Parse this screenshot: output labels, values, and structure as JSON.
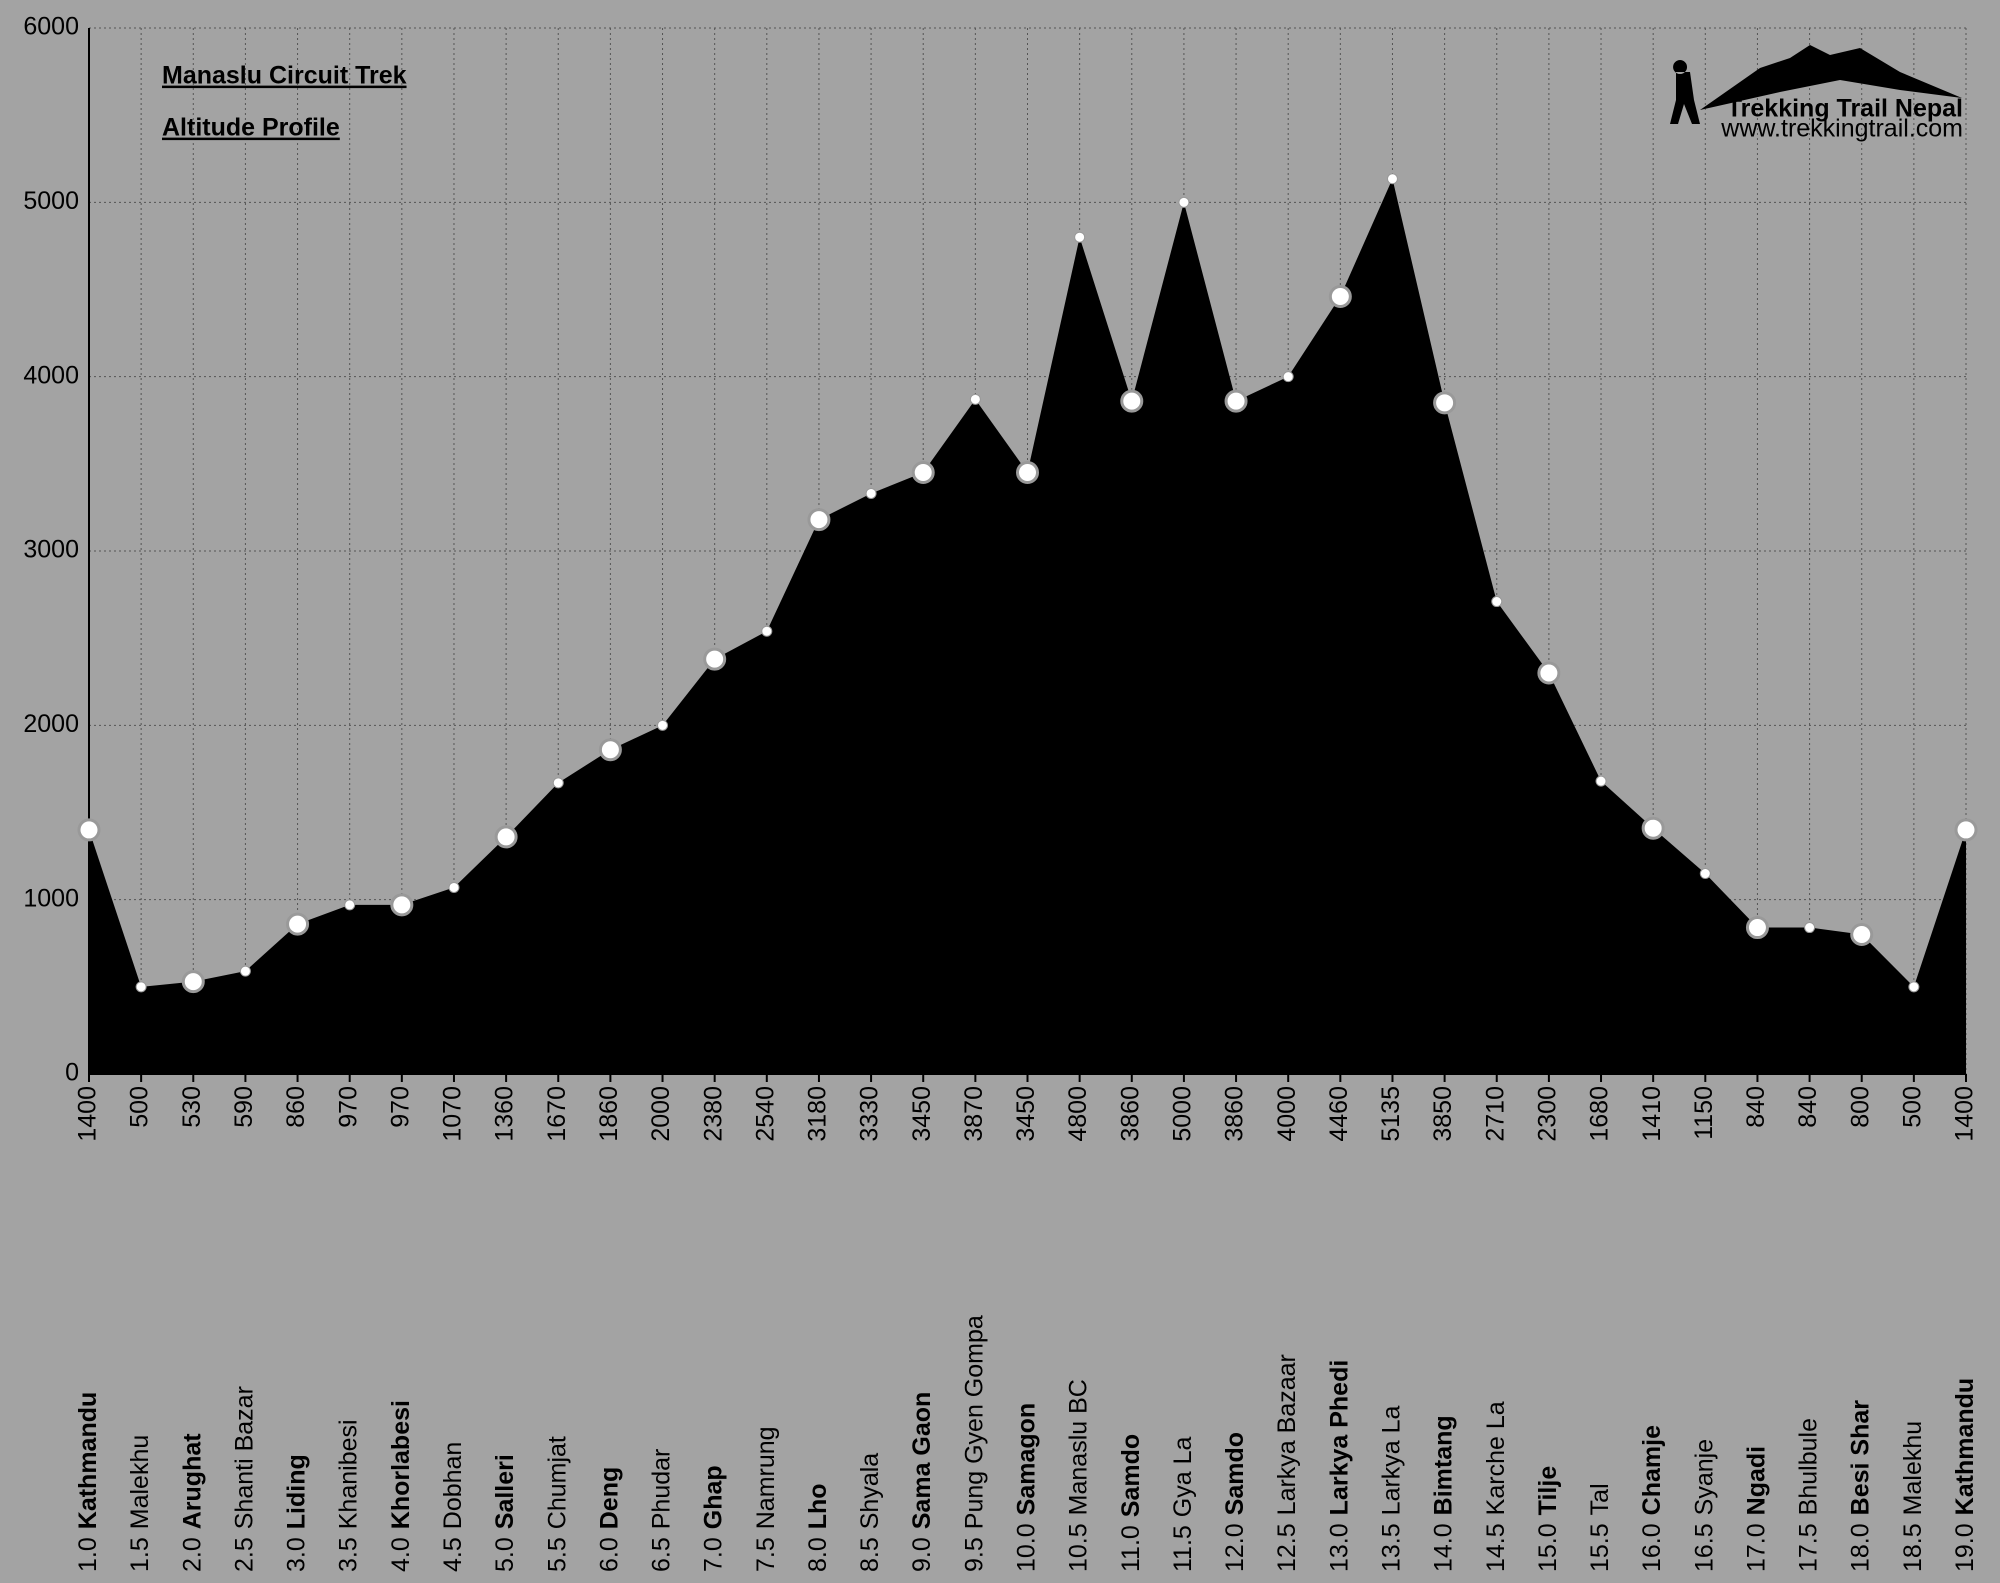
{
  "chart_data": {
    "type": "area",
    "title": "Manaslu Circuit Trek",
    "subtitle": "Altitude Profile",
    "logo": {
      "name": "Trekking Trail Nepal",
      "url": "www.trekkingtrail.com"
    },
    "days": [
      "1.0",
      "1.5",
      "2.0",
      "2.5",
      "3.0",
      "3.5",
      "4.0",
      "4.5",
      "5.0",
      "5.5",
      "6.0",
      "6.5",
      "7.0",
      "7.5",
      "8.0",
      "8.5",
      "9.0",
      "9.5",
      "10.0",
      "10.5",
      "11.0",
      "11.5",
      "12.0",
      "12.5",
      "13.0",
      "13.5",
      "14.0",
      "14.5",
      "15.0",
      "15.5",
      "16.0",
      "16.5",
      "17.0",
      "17.5",
      "18.0",
      "18.5",
      "19.0"
    ],
    "categories": [
      "Kathmandu",
      "Malekhu",
      "Arughat",
      "Shanti Bazar",
      "Liding",
      "Khanibesi",
      "Khorlabesi",
      "Dobhan",
      "Salleri",
      "Chumjat",
      "Deng",
      "Phudar",
      "Ghap",
      "Namrung",
      "Lho",
      "Shyala",
      "Sama Gaon",
      "Pung Gyen Gompa",
      "Samagon",
      "Manaslu BC",
      "Samdo",
      "Gya La",
      "Samdo",
      "Larkya Bazaar",
      "Larkya Phedi",
      "Larkya La",
      "Bimtang",
      "Karche La",
      "Tilje",
      "Tal",
      "Chamje",
      "Syanje",
      "Ngadi",
      "Bhulbule",
      "Besi Shar",
      "Malekhu",
      "Kathmandu"
    ],
    "stops": [
      true,
      false,
      true,
      false,
      true,
      false,
      true,
      false,
      true,
      false,
      true,
      false,
      true,
      false,
      true,
      false,
      true,
      false,
      true,
      false,
      true,
      false,
      true,
      false,
      true,
      false,
      true,
      false,
      true,
      false,
      true,
      false,
      true,
      false,
      true,
      false,
      true
    ],
    "values": [
      1400,
      500,
      530,
      590,
      860,
      970,
      970,
      1070,
      1360,
      1670,
      1860,
      2000,
      2380,
      2540,
      3180,
      3330,
      3450,
      3870,
      3450,
      4800,
      3860,
      5000,
      3860,
      4000,
      4460,
      5135,
      3850,
      2710,
      2300,
      1680,
      1410,
      1150,
      840,
      840,
      800,
      500,
      1400
    ],
    "color": "#000000",
    "ylim": [
      0,
      6000
    ],
    "yticks": [
      0,
      1000,
      2000,
      3000,
      4000,
      5000,
      6000
    ],
    "grid": true
  }
}
